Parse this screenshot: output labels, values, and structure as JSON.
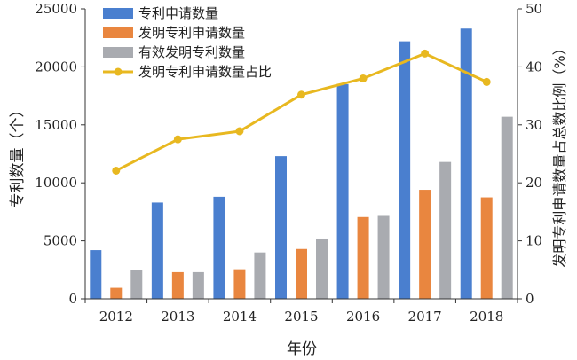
{
  "chart_data": {
    "type": "bar",
    "title": "",
    "categories": [
      "2012",
      "2013",
      "2014",
      "2015",
      "2016",
      "2017",
      "2018"
    ],
    "series": [
      {
        "name": "专利申请数量",
        "kind": "bar",
        "axis": "left",
        "color": "#4a7fcf",
        "values": [
          4200,
          8300,
          8800,
          12300,
          18500,
          22200,
          23300
        ]
      },
      {
        "name": "发明专利申请数量",
        "kind": "bar",
        "axis": "left",
        "color": "#e9863f",
        "values": [
          950,
          2300,
          2550,
          4300,
          7050,
          9400,
          8750
        ]
      },
      {
        "name": "有效发明专利数量",
        "kind": "bar",
        "axis": "left",
        "color": "#a9abb0",
        "values": [
          2500,
          2300,
          4000,
          5200,
          7150,
          11800,
          15700
        ]
      },
      {
        "name": "发明专利申请数量占比",
        "kind": "line",
        "axis": "right",
        "color": "#e8b820",
        "values": [
          22.1,
          27.5,
          28.9,
          35.2,
          38.0,
          42.3,
          37.4
        ]
      }
    ],
    "xlabel": "年份",
    "ylabel": "专利数量（个）",
    "y2label": "发明专利申请数量占总数比例（%）",
    "ylim": [
      0,
      25000
    ],
    "y2lim": [
      0,
      50
    ],
    "yticks": [
      "0",
      "5000",
      "10000",
      "15000",
      "20000",
      "25000"
    ],
    "y2ticks": [
      "0",
      "10",
      "20",
      "30",
      "40",
      "50"
    ],
    "grid": false,
    "legend_position": "top-left"
  }
}
